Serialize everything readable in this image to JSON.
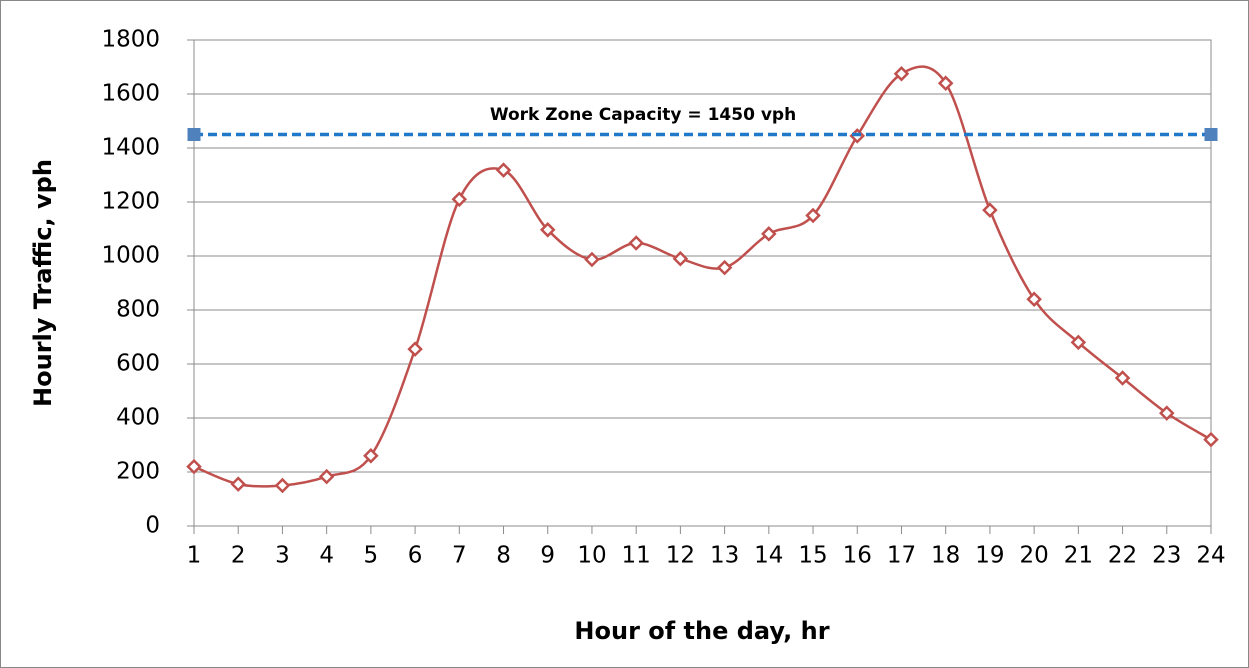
{
  "chart_data": {
    "type": "line",
    "x_label": "Hour of the day, hr",
    "y_label": "Hourly Traffic, vph",
    "annotation": "Work Zone Capacity = 1450 vph",
    "series": [
      {
        "color": "#c0504d",
        "style": "smooth",
        "marker": "diamond",
        "x": [
          1,
          2,
          3,
          4,
          5,
          6,
          7,
          8,
          9,
          10,
          11,
          12,
          13,
          14,
          15,
          16,
          17,
          18,
          19,
          20,
          21,
          22,
          23,
          24
        ],
        "values": [
          220,
          155,
          150,
          183,
          260,
          655,
          1210,
          1318,
          1097,
          987,
          1048,
          990,
          957,
          1082,
          1150,
          1445,
          1675,
          1640,
          1170,
          840,
          680,
          548,
          418,
          320
        ]
      },
      {
        "color": "#1f78c8",
        "style": "dashed",
        "marker": "square",
        "marker_color": "#4f81bd",
        "x": [
          1,
          24
        ],
        "values": [
          1450,
          1450
        ]
      }
    ],
    "xlim": [
      1,
      24
    ],
    "xticks": [
      1,
      2,
      3,
      4,
      5,
      6,
      7,
      8,
      9,
      10,
      11,
      12,
      13,
      14,
      15,
      16,
      17,
      18,
      19,
      20,
      21,
      22,
      23,
      24
    ],
    "ylim": [
      0,
      1800
    ],
    "yticks": [
      0,
      200,
      400,
      600,
      800,
      1000,
      1200,
      1400,
      1600,
      1800
    ],
    "grid": true
  }
}
